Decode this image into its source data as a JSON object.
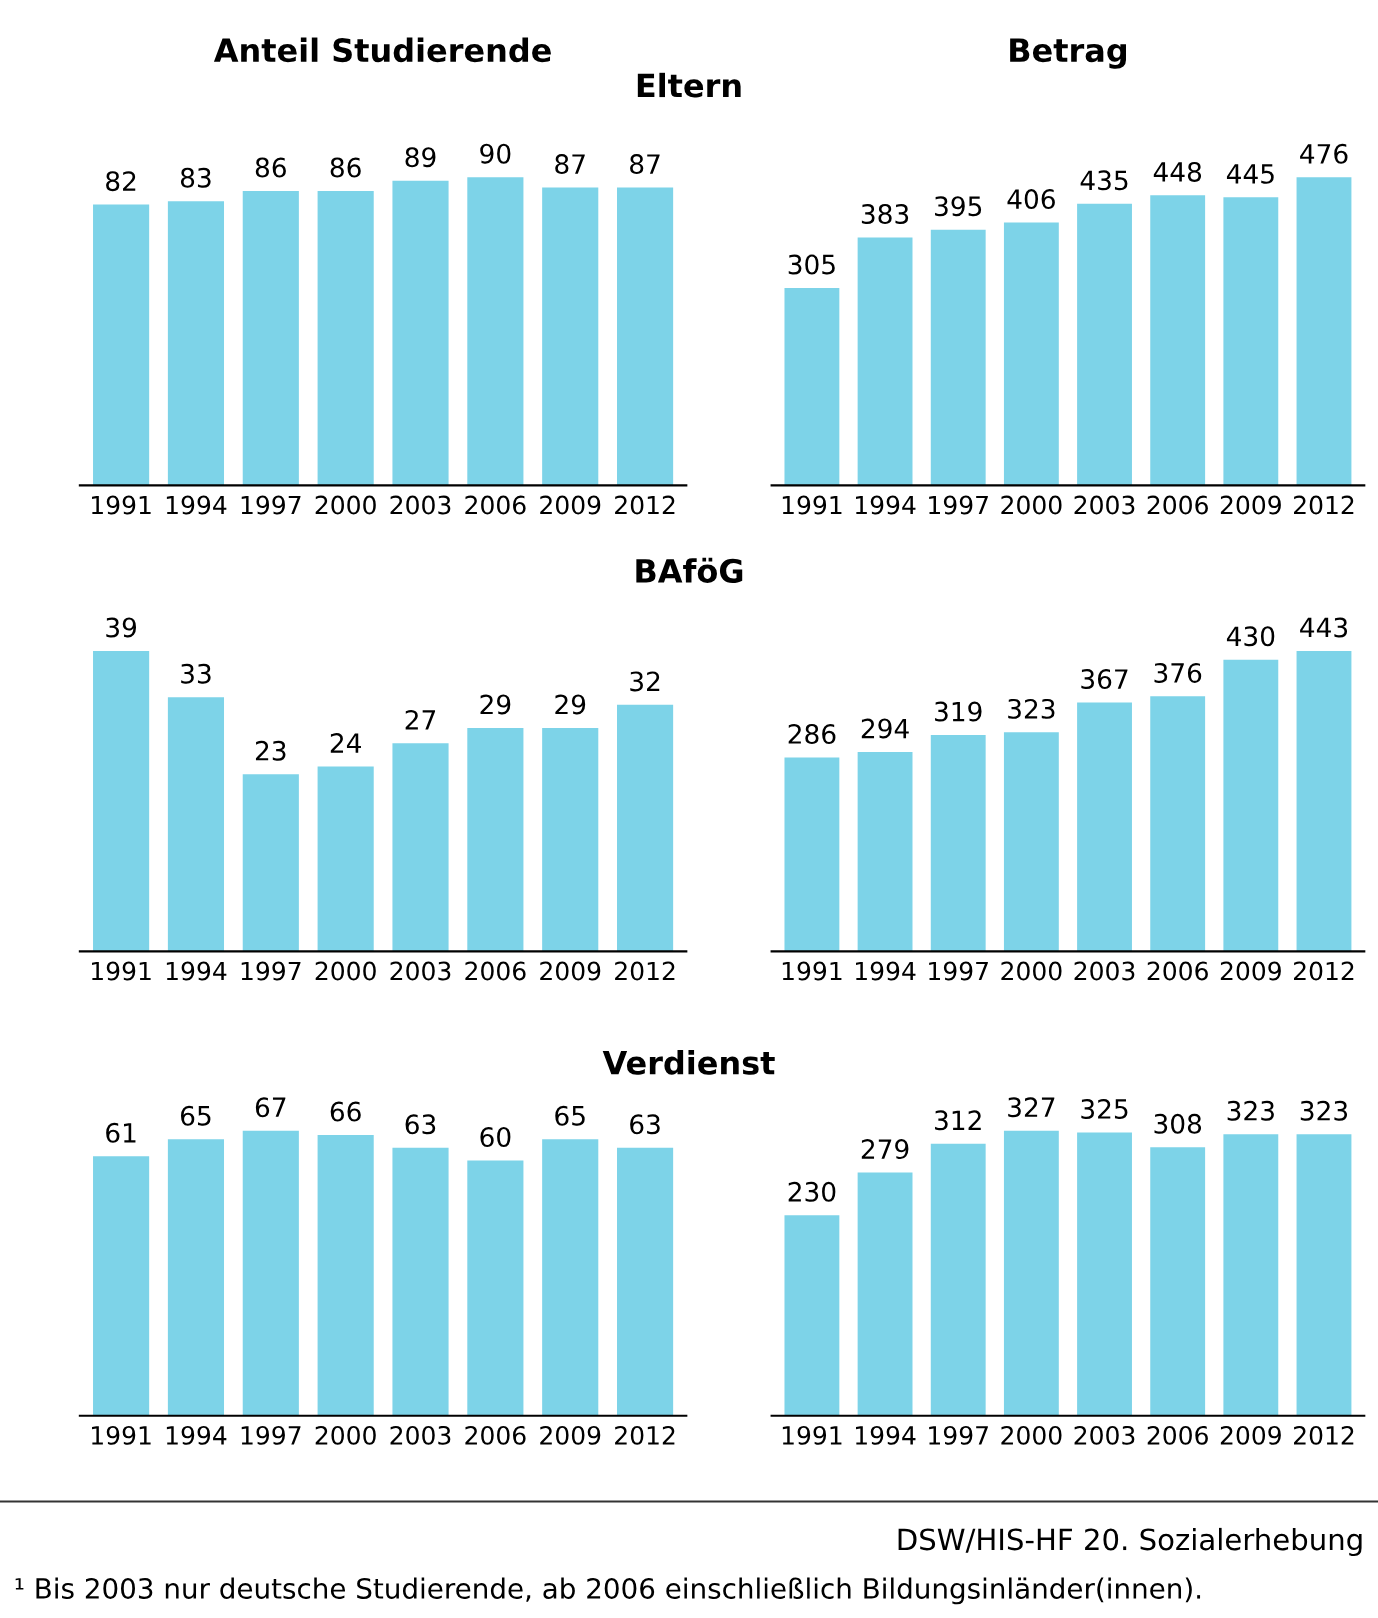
{
  "chart_data": [
    {
      "type": "bar",
      "title": "Anteil Studierende",
      "subtitle": "Eltern",
      "categories": [
        "1991",
        "1994",
        "1997",
        "2000",
        "2003",
        "2006",
        "2009",
        "2012"
      ],
      "values": [
        82,
        83,
        86,
        86,
        89,
        90,
        87,
        87
      ],
      "color": "#7dd3e8",
      "data_labels": true,
      "tick_labels": "x"
    },
    {
      "type": "bar",
      "title": "Betrag",
      "categories": [
        "1991",
        "1994",
        "1997",
        "2000",
        "2003",
        "2006",
        "2009",
        "2012"
      ],
      "values": [
        305,
        383,
        395,
        406,
        435,
        448,
        445,
        476
      ],
      "color": "#7dd3e8",
      "data_labels": true,
      "tick_labels": "x"
    },
    {
      "type": "bar",
      "title": "BAföG",
      "categories": [
        "1991",
        "1994",
        "1997",
        "2000",
        "2003",
        "2006",
        "2009",
        "2012"
      ],
      "values": [
        39,
        33,
        23,
        24,
        27,
        29,
        29,
        32
      ],
      "color": "#7dd3e8",
      "data_labels": true,
      "tick_labels": "x"
    },
    {
      "type": "bar",
      "categories": [
        "1991",
        "1994",
        "1997",
        "2000",
        "2003",
        "2006",
        "2009",
        "2012"
      ],
      "values": [
        286,
        294,
        319,
        323,
        367,
        376,
        430,
        443
      ],
      "color": "#7dd3e8",
      "data_labels": true,
      "tick_labels": "x"
    },
    {
      "type": "bar",
      "title": "Verdienst",
      "categories": [
        "1991",
        "1994",
        "1997",
        "2000",
        "2003",
        "2006",
        "2009",
        "2012"
      ],
      "values": [
        61,
        65,
        67,
        66,
        63,
        60,
        65,
        63
      ],
      "color": "#7dd3e8",
      "data_labels": true,
      "tick_labels": "x"
    },
    {
      "type": "bar",
      "categories": [
        "1991",
        "1994",
        "1997",
        "2000",
        "2003",
        "2006",
        "2009",
        "2012"
      ],
      "values": [
        230,
        279,
        312,
        327,
        325,
        308,
        323,
        323
      ],
      "color": "#7dd3e8",
      "data_labels": true,
      "tick_labels": "x",
      "annotations": [
        "DSW/HIS-HF 20. Sozialerhebung",
        "¹ Bis 2003 nur deutsche Studierende, ab 2006 einschließlich Bildungsinländer(innen)."
      ]
    }
  ]
}
